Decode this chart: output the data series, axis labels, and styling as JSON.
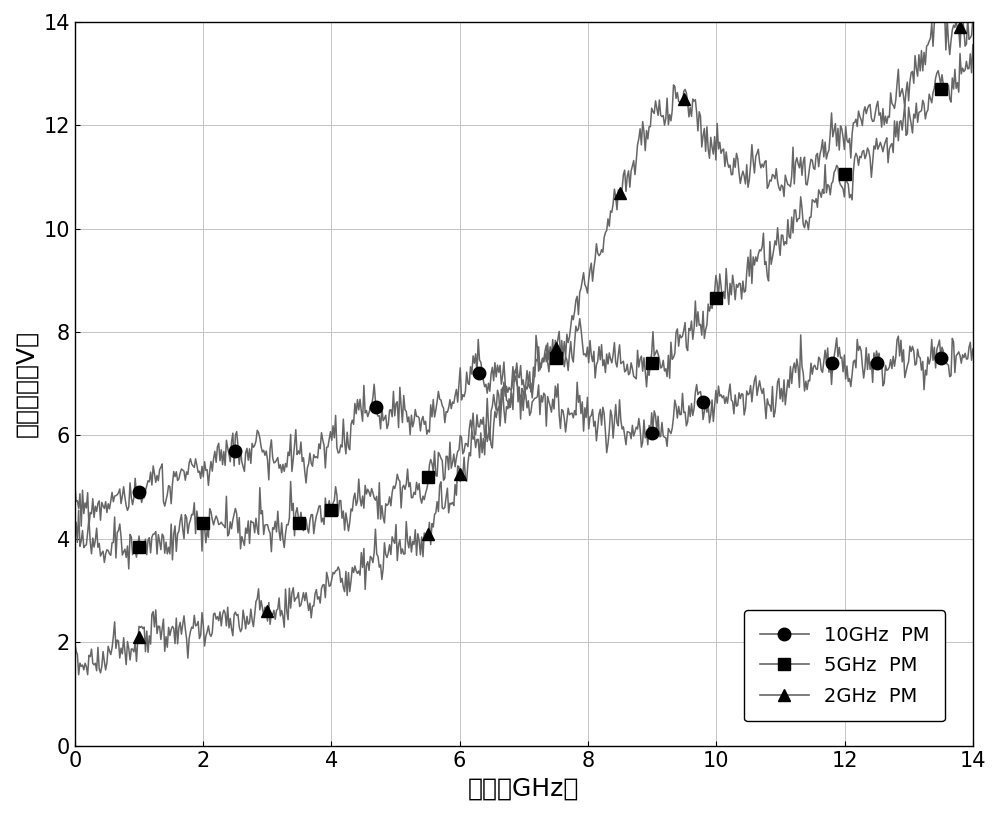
{
  "xlabel": "频率（GHz）",
  "ylabel": "半波电压（V）",
  "xlim": [
    0,
    14
  ],
  "ylim": [
    0,
    14
  ],
  "xticks": [
    0,
    2,
    4,
    6,
    8,
    10,
    12,
    14
  ],
  "yticks": [
    0,
    2,
    4,
    6,
    8,
    10,
    12,
    14
  ],
  "line_color": "#666666",
  "grid_color": "#bbbbbb",
  "background_color": "#ffffff",
  "legend_labels": [
    "10GHz  PM",
    "5GHz  PM",
    "2GHz  PM"
  ],
  "xlabel_fontsize": 18,
  "ylabel_fontsize": 18,
  "tick_fontsize": 15,
  "legend_fontsize": 14,
  "series_10GHz_markers_x": [
    1.0,
    2.5,
    4.7,
    6.3,
    9.0,
    9.8,
    11.8,
    12.5,
    13.5
  ],
  "series_10GHz_markers_y": [
    4.9,
    5.7,
    6.55,
    7.2,
    6.05,
    6.65,
    7.4,
    7.4,
    7.5
  ],
  "series_5GHz_markers_x": [
    1.0,
    2.0,
    3.5,
    4.0,
    5.5,
    7.5,
    9.0,
    10.0,
    12.0,
    13.5
  ],
  "series_5GHz_markers_y": [
    3.85,
    4.3,
    4.3,
    4.55,
    5.2,
    7.5,
    7.4,
    8.65,
    11.05,
    12.7
  ],
  "series_2GHz_markers_x": [
    1.0,
    3.0,
    5.5,
    6.0,
    7.5,
    8.5,
    9.5,
    13.8
  ],
  "series_2GHz_markers_y": [
    2.1,
    2.6,
    4.1,
    5.25,
    7.7,
    10.7,
    12.5,
    13.9
  ],
  "ctrl_10_x": [
    0.0,
    0.5,
    1.0,
    2.0,
    2.5,
    3.5,
    4.0,
    4.7,
    5.5,
    6.3,
    7.0,
    8.0,
    9.0,
    9.8,
    10.5,
    11.0,
    11.8,
    12.5,
    13.0,
    13.5,
    14.0
  ],
  "ctrl_10_y": [
    4.6,
    4.7,
    4.9,
    5.4,
    5.7,
    5.5,
    5.8,
    6.55,
    6.3,
    7.2,
    6.8,
    6.4,
    6.05,
    6.65,
    6.7,
    6.9,
    7.4,
    7.4,
    7.5,
    7.5,
    7.6
  ],
  "ctrl_5_x": [
    0.0,
    0.5,
    1.0,
    2.0,
    3.0,
    3.5,
    4.0,
    5.0,
    5.5,
    6.0,
    6.5,
    7.5,
    8.0,
    9.0,
    10.0,
    10.5,
    11.0,
    12.0,
    12.5,
    13.5,
    14.0
  ],
  "ctrl_5_y": [
    4.1,
    3.9,
    3.85,
    4.3,
    4.2,
    4.3,
    4.55,
    4.9,
    5.2,
    5.8,
    6.5,
    7.5,
    7.6,
    7.4,
    8.65,
    9.2,
    9.8,
    11.05,
    11.5,
    12.7,
    13.2
  ],
  "ctrl_2_x": [
    0.0,
    0.5,
    1.0,
    1.5,
    2.0,
    2.5,
    3.0,
    3.5,
    4.0,
    4.5,
    5.0,
    5.5,
    6.0,
    6.5,
    7.0,
    7.5,
    8.0,
    8.3,
    8.5,
    9.0,
    9.5,
    10.0,
    10.5,
    11.0,
    11.5,
    12.0,
    12.5,
    13.0,
    13.5,
    13.8,
    14.0
  ],
  "ctrl_2_y": [
    1.5,
    1.8,
    2.1,
    2.2,
    2.3,
    2.45,
    2.6,
    2.8,
    3.1,
    3.4,
    3.75,
    4.1,
    5.25,
    6.2,
    7.0,
    7.7,
    9.0,
    10.0,
    10.7,
    12.0,
    12.5,
    11.5,
    11.2,
    11.0,
    11.3,
    11.8,
    12.2,
    12.8,
    13.9,
    13.9,
    13.8
  ]
}
